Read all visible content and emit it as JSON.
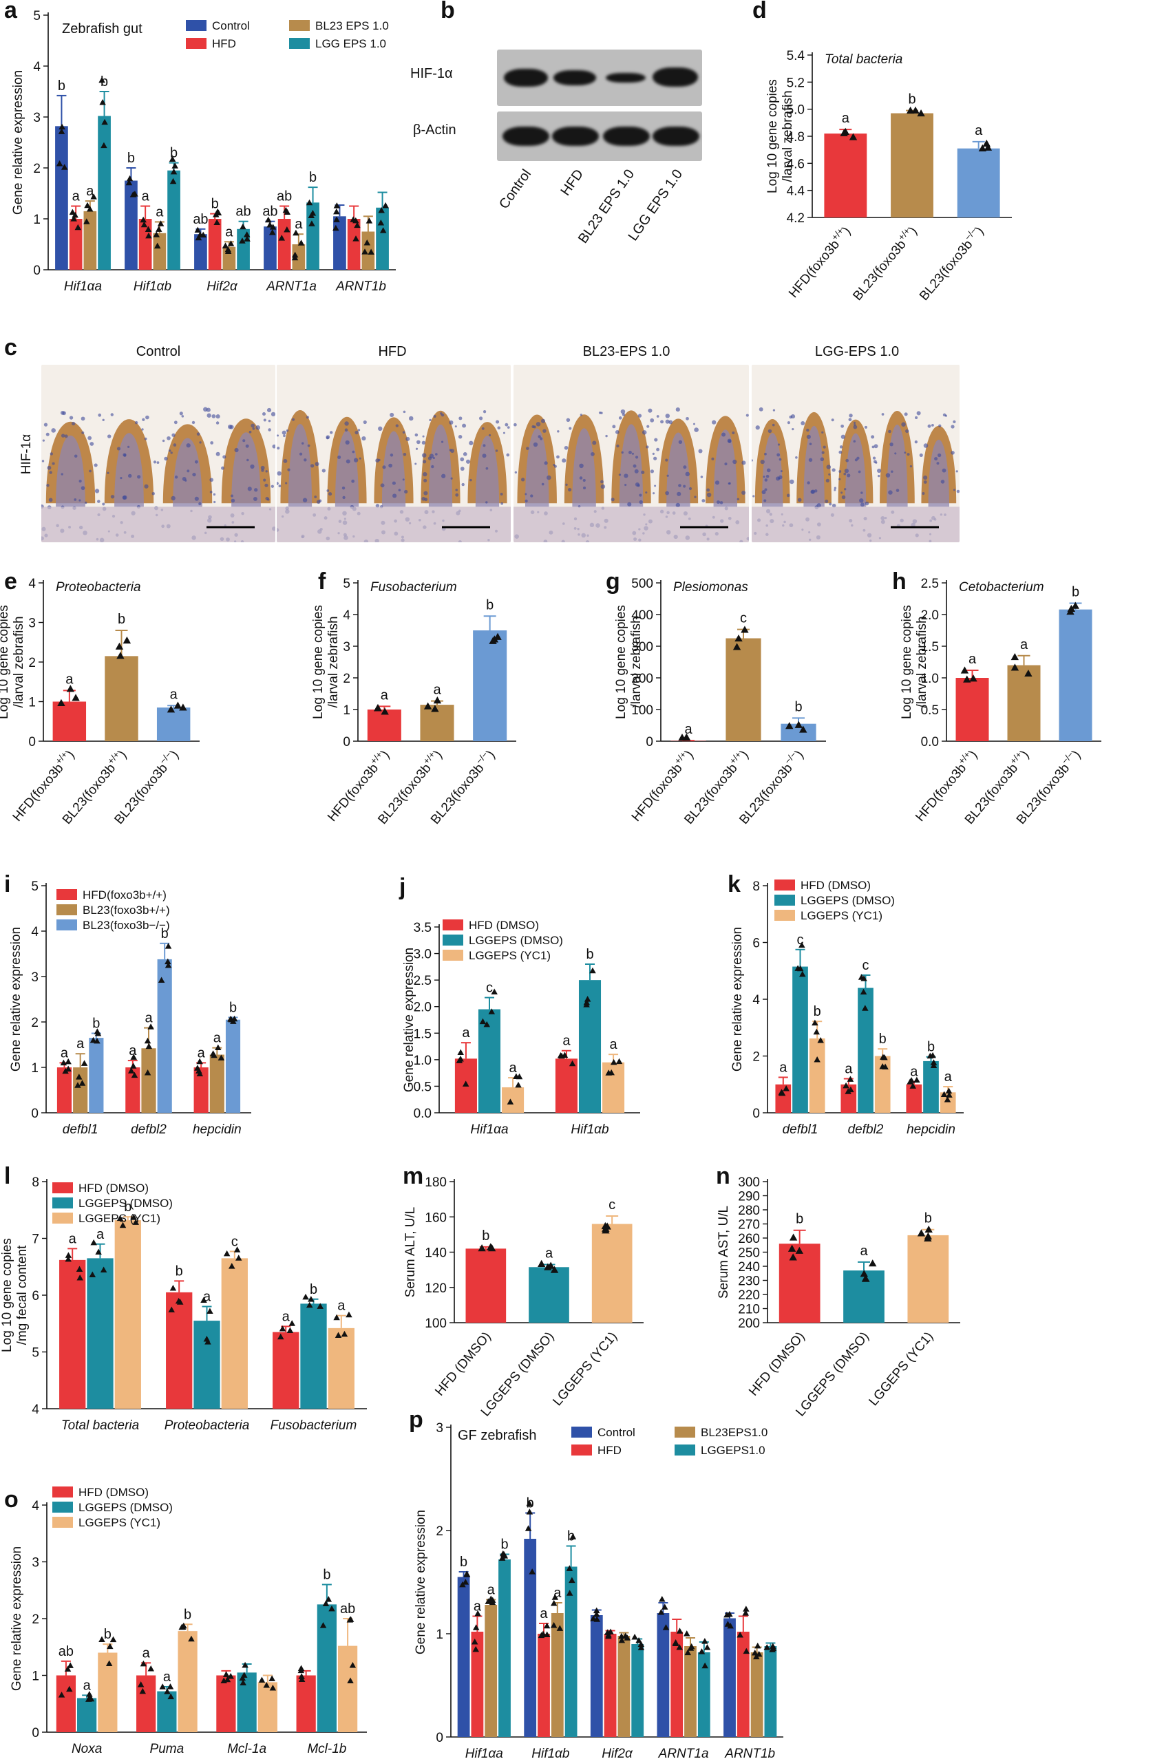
{
  "colors": {
    "red": "#e8383b",
    "gold": "#b78b4c",
    "blue": "#6b9ad3",
    "teal": "#1d8da0",
    "navy": "#2f51a8",
    "peach": "#efb77e",
    "black": "#111111",
    "hist_tissue": "#b4742e",
    "hist_nuclei": "#3d4a9a"
  },
  "panels": {
    "a": {
      "letter": "a",
      "label": "Zebrafish gut",
      "legend": [
        "Control",
        "HFD",
        "BL23 EPS 1.0",
        "LGG EPS 1.0"
      ]
    },
    "b": {
      "letter": "b",
      "rows": [
        "HIF-1α",
        "β-Actin"
      ],
      "lanes": [
        "Control",
        "HFD",
        "BL23 EPS 1.0",
        "LGG EPS 1.0"
      ]
    },
    "c": {
      "letter": "c",
      "row_label": "HIF-1α",
      "titles": [
        "Control",
        "HFD",
        "BL23-EPS 1.0",
        "LGG-EPS 1.0"
      ]
    },
    "d": {
      "letter": "d"
    },
    "e": {
      "letter": "e"
    },
    "f": {
      "letter": "f"
    },
    "g": {
      "letter": "g"
    },
    "h": {
      "letter": "h"
    },
    "i": {
      "letter": "i"
    },
    "j": {
      "letter": "j"
    },
    "k": {
      "letter": "k"
    },
    "l": {
      "letter": "l"
    },
    "m": {
      "letter": "m"
    },
    "n": {
      "letter": "n"
    },
    "o": {
      "letter": "o"
    },
    "p": {
      "letter": "p",
      "label": "GF zebrafish"
    }
  },
  "chart_data": [
    {
      "id": "a",
      "type": "bar",
      "ylabel": "Gene relative expression",
      "ylim": [
        0,
        5
      ],
      "yticks": [
        0,
        1,
        2,
        3,
        4,
        5
      ],
      "categories": [
        "Hif1αa",
        "Hif1αb",
        "Hif2α",
        "ARNT1a",
        "ARNT1b"
      ],
      "series": [
        {
          "name": "Control",
          "color": "navy",
          "values": [
            2.82,
            1.75,
            0.7,
            0.85,
            1.05
          ],
          "errors": [
            0.6,
            0.25,
            0.1,
            0.1,
            0.22
          ],
          "letters": [
            "b",
            "b",
            "ab",
            "ab",
            ""
          ]
        },
        {
          "name": "HFD",
          "color": "red",
          "values": [
            1.0,
            1.0,
            1.0,
            1.0,
            1.0
          ],
          "errors": [
            0.25,
            0.25,
            0.1,
            0.25,
            0.25
          ],
          "letters": [
            "a",
            "a",
            "b",
            "ab",
            ""
          ]
        },
        {
          "name": "BL23 EPS 1.0",
          "color": "gold",
          "values": [
            1.15,
            0.72,
            0.45,
            0.5,
            0.75
          ],
          "errors": [
            0.2,
            0.22,
            0.1,
            0.2,
            0.3
          ],
          "letters": [
            "a",
            "a",
            "a",
            "a",
            ""
          ]
        },
        {
          "name": "LGG EPS 1.0",
          "color": "teal",
          "values": [
            3.02,
            1.95,
            0.8,
            1.32,
            1.22
          ],
          "errors": [
            0.48,
            0.15,
            0.15,
            0.3,
            0.3
          ],
          "letters": [
            "b",
            "b",
            "ab",
            "b",
            ""
          ]
        }
      ]
    },
    {
      "id": "d",
      "type": "bar",
      "title": "Total bacteria",
      "ylabel": "Log 10 gene copies /larval zebrafish",
      "ylim": [
        4.2,
        5.4
      ],
      "yticks": [
        4.2,
        4.4,
        4.6,
        4.8,
        5.0,
        5.2,
        5.4
      ],
      "categories": [
        "HFD(foxo3b+/+)",
        "BL23(foxo3b+/+)",
        "BL23(foxo3b−/−)"
      ],
      "series": [
        {
          "name": "groups",
          "colors": [
            "red",
            "gold",
            "blue"
          ],
          "values": [
            4.82,
            4.97,
            4.71
          ],
          "errors": [
            0.03,
            0.02,
            0.05
          ],
          "letters": [
            "a",
            "b",
            "a"
          ]
        }
      ]
    },
    {
      "id": "e",
      "type": "bar",
      "title": "Proteobacteria",
      "ylabel": "Log 10 gene copies /larval zebrafish",
      "ylim": [
        0,
        4
      ],
      "yticks": [
        0,
        1,
        2,
        3,
        4
      ],
      "categories": [
        "HFD(foxo3b+/+)",
        "BL23(foxo3b+/+)",
        "BL23(foxo3b−/−)"
      ],
      "series": [
        {
          "name": "groups",
          "colors": [
            "red",
            "gold",
            "blue"
          ],
          "values": [
            1.0,
            2.15,
            0.85
          ],
          "errors": [
            0.28,
            0.65,
            0.05
          ],
          "letters": [
            "a",
            "b",
            "a"
          ]
        }
      ]
    },
    {
      "id": "f",
      "type": "bar",
      "title": "Fusobacterium",
      "ylabel": "Log 10 gene copies /larval zebrafish",
      "ylim": [
        0,
        5
      ],
      "yticks": [
        0,
        1,
        2,
        3,
        4,
        5
      ],
      "categories": [
        "HFD(foxo3b+/+)",
        "BL23(foxo3b+/+)",
        "BL23(foxo3b−/−)"
      ],
      "series": [
        {
          "name": "groups",
          "colors": [
            "red",
            "gold",
            "blue"
          ],
          "values": [
            1.0,
            1.15,
            3.5
          ],
          "errors": [
            0.1,
            0.12,
            0.45
          ],
          "letters": [
            "a",
            "a",
            "b"
          ]
        }
      ]
    },
    {
      "id": "g",
      "type": "bar",
      "title": "Plesiomonas",
      "ylabel": "Log 10 gene copies /larval zebrafish",
      "ylim": [
        0,
        500
      ],
      "yticks": [
        0,
        100,
        200,
        300,
        400,
        500
      ],
      "categories": [
        "HFD(foxo3b+/+)",
        "BL23(foxo3b+/+)",
        "BL23(foxo3b−/−)"
      ],
      "series": [
        {
          "name": "groups",
          "colors": [
            "red",
            "gold",
            "blue"
          ],
          "values": [
            1,
            325,
            55
          ],
          "errors": [
            1,
            28,
            18
          ],
          "letters": [
            "a",
            "c",
            "b"
          ]
        }
      ]
    },
    {
      "id": "h",
      "type": "bar",
      "title": "Cetobacterium",
      "ylabel": "Log 10 gene copies /larval zebrafish",
      "ylim": [
        0,
        2.5
      ],
      "yticks": [
        0,
        0.5,
        1.0,
        1.5,
        2.0,
        2.5
      ],
      "categories": [
        "HFD(foxo3b+/+)",
        "BL23(foxo3b+/+)",
        "BL23(foxo3b−/−)"
      ],
      "series": [
        {
          "name": "groups",
          "colors": [
            "red",
            "gold",
            "blue"
          ],
          "values": [
            1.0,
            1.2,
            2.08
          ],
          "errors": [
            0.12,
            0.15,
            0.1
          ],
          "letters": [
            "a",
            "a",
            "b"
          ]
        }
      ]
    },
    {
      "id": "i",
      "type": "bar",
      "ylabel": "Gene relative expression",
      "ylim": [
        0,
        5
      ],
      "yticks": [
        0,
        1,
        2,
        3,
        4,
        5
      ],
      "categories": [
        "defbl1",
        "defbl2",
        "hepcidin"
      ],
      "series": [
        {
          "name": "HFD(foxo3b+/+)",
          "color": "red",
          "values": [
            1.0,
            1.0,
            1.0
          ],
          "errors": [
            0.1,
            0.15,
            0.1
          ],
          "letters": [
            "a",
            "a",
            "a"
          ]
        },
        {
          "name": "BL23(foxo3b+/+)",
          "color": "gold",
          "values": [
            1.0,
            1.42,
            1.28
          ],
          "errors": [
            0.3,
            0.45,
            0.15
          ],
          "letters": [
            "a",
            "a",
            "a"
          ]
        },
        {
          "name": "BL23(foxo3b−/−)",
          "color": "blue",
          "values": [
            1.65,
            3.38,
            2.05
          ],
          "errors": [
            0.1,
            0.35,
            0.05
          ],
          "letters": [
            "b",
            "b",
            "b"
          ]
        }
      ]
    },
    {
      "id": "j",
      "type": "bar",
      "ylabel": "Gene relative expression",
      "ylim": [
        0,
        3.5
      ],
      "yticks": [
        0,
        0.5,
        1.0,
        1.5,
        2.0,
        2.5,
        3.0,
        3.5
      ],
      "categories": [
        "Hif1αa",
        "Hif1αb"
      ],
      "series": [
        {
          "name": "HFD (DMSO)",
          "color": "red",
          "values": [
            1.02,
            1.02
          ],
          "errors": [
            0.3,
            0.15
          ],
          "letters": [
            "a",
            "a"
          ]
        },
        {
          "name": "LGGEPS (DMSO)",
          "color": "teal",
          "values": [
            1.95,
            2.5
          ],
          "errors": [
            0.22,
            0.3
          ],
          "letters": [
            "c",
            "b"
          ]
        },
        {
          "name": "LGGEPS (YC1)",
          "color": "peach",
          "values": [
            0.48,
            0.95
          ],
          "errors": [
            0.18,
            0.15
          ],
          "letters": [
            "a",
            "a"
          ]
        }
      ]
    },
    {
      "id": "k",
      "type": "bar",
      "ylabel": "Gene relative expression",
      "ylim": [
        0,
        8
      ],
      "yticks": [
        0,
        2,
        4,
        6,
        8
      ],
      "categories": [
        "defbl1",
        "defbl2",
        "hepcidin"
      ],
      "series": [
        {
          "name": "HFD (DMSO)",
          "color": "red",
          "values": [
            1.0,
            1.0,
            1.0
          ],
          "errors": [
            0.25,
            0.2,
            0.1
          ],
          "letters": [
            "a",
            "a",
            "a"
          ]
        },
        {
          "name": "LGGEPS (DMSO)",
          "color": "teal",
          "values": [
            5.15,
            4.4,
            1.82
          ],
          "errors": [
            0.6,
            0.45,
            0.15
          ],
          "letters": [
            "c",
            "c",
            "b"
          ]
        },
        {
          "name": "LGGEPS (YC1)",
          "color": "peach",
          "values": [
            2.62,
            2.0,
            0.72
          ],
          "errors": [
            0.6,
            0.25,
            0.2
          ],
          "letters": [
            "b",
            "b",
            "a"
          ]
        }
      ]
    },
    {
      "id": "l",
      "type": "bar",
      "ylabel": "Log 10 gene copies /mg fecal content",
      "ylim": [
        4,
        8
      ],
      "yticks": [
        4,
        5,
        6,
        7,
        8
      ],
      "categories": [
        "Total bacteria",
        "Proteobacteria",
        "Fusobacterium"
      ],
      "series": [
        {
          "name": "HFD (DMSO)",
          "color": "red",
          "values": [
            6.62,
            6.05,
            5.35
          ],
          "errors": [
            0.2,
            0.2,
            0.1
          ],
          "letters": [
            "a",
            "b",
            "a"
          ]
        },
        {
          "name": "LGGEPS (DMSO)",
          "color": "teal",
          "values": [
            6.65,
            5.55,
            5.85
          ],
          "errors": [
            0.25,
            0.25,
            0.08
          ],
          "letters": [
            "a",
            "a",
            "b"
          ]
        },
        {
          "name": "LGGEPS (YC1)",
          "color": "peach",
          "values": [
            7.32,
            6.65,
            5.42
          ],
          "errors": [
            0.06,
            0.12,
            0.22
          ],
          "letters": [
            "b",
            "c",
            "a"
          ]
        }
      ]
    },
    {
      "id": "m",
      "type": "bar",
      "ylabel": "Serum ALT, U/L",
      "ylim": [
        100,
        180
      ],
      "yticks": [
        100,
        120,
        140,
        160,
        180
      ],
      "categories": [
        "HFD (DMSO)",
        "LGGEPS (DMSO)",
        "LGGEPS (YC1)"
      ],
      "series": [
        {
          "name": "groups",
          "colors": [
            "red",
            "teal",
            "peach"
          ],
          "values": [
            142,
            131.5,
            156
          ],
          "errors": [
            1,
            1.5,
            4.5
          ],
          "letters": [
            "b",
            "a",
            "c"
          ]
        }
      ]
    },
    {
      "id": "n",
      "type": "bar",
      "ylabel": "Serum AST, U/L",
      "ylim": [
        200,
        300
      ],
      "yticks": [
        200,
        210,
        220,
        230,
        240,
        250,
        260,
        270,
        280,
        290,
        300
      ],
      "categories": [
        "HFD (DMSO)",
        "LGGEPS (DMSO)",
        "LGGEPS (YC1)"
      ],
      "series": [
        {
          "name": "groups",
          "colors": [
            "red",
            "teal",
            "peach"
          ],
          "values": [
            256,
            237,
            262
          ],
          "errors": [
            9.5,
            6,
            4
          ],
          "letters": [
            "b",
            "a",
            "b"
          ]
        }
      ]
    },
    {
      "id": "o",
      "type": "bar",
      "ylabel": "Gene relative expression",
      "ylim": [
        0,
        4
      ],
      "yticks": [
        0,
        1,
        2,
        3,
        4
      ],
      "categories": [
        "Noxa",
        "Puma",
        "Mcl-1a",
        "Mcl-1b"
      ],
      "series": [
        {
          "name": "HFD (DMSO)",
          "color": "red",
          "values": [
            1.0,
            1.0,
            1.0,
            1.0
          ],
          "errors": [
            0.25,
            0.22,
            0.08,
            0.08
          ],
          "letters": [
            "ab",
            "a",
            "",
            ""
          ]
        },
        {
          "name": "LGGEPS (DMSO)",
          "color": "teal",
          "values": [
            0.6,
            0.72,
            1.05,
            2.25
          ],
          "errors": [
            0.05,
            0.08,
            0.15,
            0.35
          ],
          "letters": [
            "a",
            "a",
            "",
            "b"
          ]
        },
        {
          "name": "LGGEPS (YC1)",
          "color": "peach",
          "values": [
            1.4,
            1.78,
            0.88,
            1.52
          ],
          "errors": [
            0.15,
            0.12,
            0.12,
            0.48
          ],
          "letters": [
            "b",
            "b",
            "",
            "ab"
          ]
        }
      ]
    },
    {
      "id": "p",
      "type": "bar",
      "ylabel": "Gene relative expression",
      "ylim": [
        0,
        3
      ],
      "yticks": [
        0,
        1,
        2,
        3
      ],
      "categories": [
        "Hif1αa",
        "Hif1αb",
        "Hif2α",
        "ARNT1a",
        "ARNT1b"
      ],
      "series": [
        {
          "name": "Control",
          "color": "navy",
          "values": [
            1.55,
            1.92,
            1.18,
            1.2,
            1.15
          ],
          "errors": [
            0.05,
            0.25,
            0.05,
            0.1,
            0.05
          ],
          "letters": [
            "b",
            "b",
            "",
            "",
            ""
          ]
        },
        {
          "name": "HFD",
          "color": "red",
          "values": [
            1.02,
            1.0,
            1.0,
            1.02,
            1.02
          ],
          "errors": [
            0.15,
            0.1,
            0.03,
            0.12,
            0.15
          ],
          "letters": [
            "a",
            "a",
            "",
            "",
            ""
          ]
        },
        {
          "name": "BL23EPS1.0",
          "color": "gold",
          "values": [
            1.28,
            1.2,
            0.98,
            0.88,
            0.82
          ],
          "errors": [
            0.05,
            0.1,
            0.03,
            0.08,
            0.05
          ],
          "letters": [
            "a",
            "a",
            "",
            "",
            ""
          ]
        },
        {
          "name": "LGGEPS1.0",
          "color": "teal",
          "values": [
            1.72,
            1.65,
            0.9,
            0.82,
            0.88
          ],
          "errors": [
            0.05,
            0.2,
            0.05,
            0.1,
            0.03
          ],
          "letters": [
            "b",
            "b",
            "",
            "",
            ""
          ]
        }
      ]
    }
  ]
}
